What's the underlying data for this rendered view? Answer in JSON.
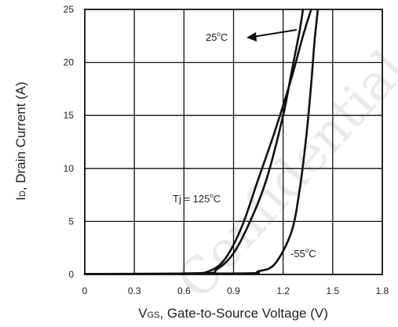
{
  "chart_data": {
    "type": "line",
    "xlabel_main": "V",
    "xlabel_sub": "GS",
    "xlabel_rest": ", Gate-to-Source Voltage (V)",
    "ylabel_main": "I",
    "ylabel_sub": "D",
    "ylabel_rest": ", Drain Current (A)",
    "xlim": [
      0,
      1.8
    ],
    "ylim": [
      0,
      25
    ],
    "x_ticks": [
      "0",
      "0.3",
      "0.6",
      "0.9",
      "1.2",
      "1.5",
      "1.8"
    ],
    "y_ticks": [
      "0",
      "5",
      "10",
      "15",
      "20",
      "25"
    ],
    "grid": true,
    "series": [
      {
        "name": "Tj = 125°C",
        "points": [
          [
            0,
            0.05
          ],
          [
            0.6,
            0.1
          ],
          [
            0.75,
            0.3
          ],
          [
            0.85,
            1.5
          ],
          [
            0.95,
            4.5
          ],
          [
            1.05,
            9.0
          ],
          [
            1.15,
            13.5
          ],
          [
            1.25,
            18.5
          ],
          [
            1.32,
            22.5
          ],
          [
            1.37,
            25
          ]
        ]
      },
      {
        "name": "25°C",
        "points": [
          [
            0,
            0.05
          ],
          [
            0.7,
            0.1
          ],
          [
            0.8,
            0.5
          ],
          [
            0.9,
            2.0
          ],
          [
            1.0,
            5.0
          ],
          [
            1.1,
            9.0
          ],
          [
            1.2,
            15.0
          ],
          [
            1.25,
            19.0
          ],
          [
            1.3,
            23.0
          ],
          [
            1.32,
            25
          ]
        ]
      },
      {
        "name": "-55°C",
        "points": [
          [
            0,
            0.05
          ],
          [
            0.95,
            0.1
          ],
          [
            1.05,
            0.3
          ],
          [
            1.15,
            1.0
          ],
          [
            1.25,
            4.0
          ],
          [
            1.3,
            8.0
          ],
          [
            1.34,
            13.0
          ],
          [
            1.37,
            18.0
          ],
          [
            1.39,
            22.0
          ],
          [
            1.41,
            25
          ]
        ]
      }
    ],
    "annotations": [
      {
        "text": "25",
        "unit": "C"
      },
      {
        "text": "Tj = 125",
        "unit": "C"
      },
      {
        "text": "-55",
        "unit": "C"
      }
    ]
  },
  "watermark": "Confidential",
  "colors": {
    "line": "#111111",
    "grid": "#111111",
    "text": "#222222",
    "watermark": "#d9d9d9"
  }
}
